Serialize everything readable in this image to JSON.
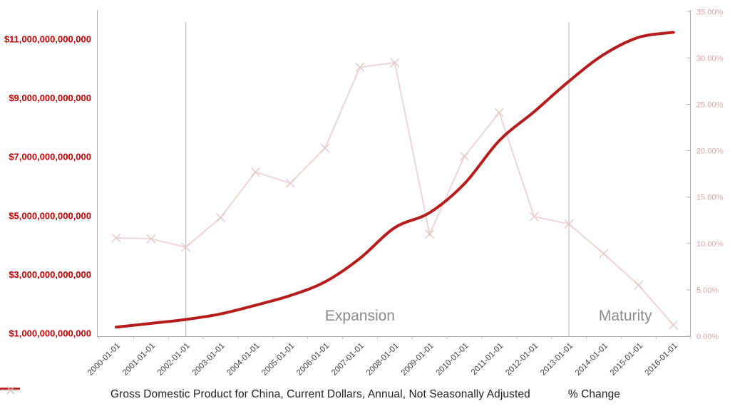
{
  "chart_data": {
    "type": "line",
    "title": "",
    "categories": [
      "2000-01-01",
      "2001-01-01",
      "2002-01-01",
      "2003-01-01",
      "2004-01-01",
      "2005-01-01",
      "2006-01-01",
      "2007-01-01",
      "2008-01-01",
      "2009-01-01",
      "2010-01-01",
      "2011-01-01",
      "2012-01-01",
      "2013-01-01",
      "2014-01-01",
      "2015-01-01",
      "2016-01-01"
    ],
    "series": [
      {
        "name": "Gross Domestic Product for China, Current Dollars, Annual, Not Seasonally Adjusted",
        "axis": "left",
        "unit": "USD trillions",
        "style": "smooth-line",
        "color": "#b71c1c",
        "values": [
          1.211,
          1.339,
          1.471,
          1.66,
          1.955,
          2.286,
          2.752,
          3.55,
          4.594,
          5.102,
          6.087,
          7.552,
          8.532,
          9.57,
          10.476,
          11.062,
          11.233
        ]
      },
      {
        "name": "% Change",
        "axis": "right",
        "unit": "percent",
        "style": "line-x-markers",
        "color": "#eed8d8",
        "marker_color": "#e5c7c7",
        "values": [
          10.6,
          10.5,
          9.6,
          12.8,
          17.7,
          16.5,
          20.3,
          29.0,
          29.5,
          11.0,
          19.4,
          24.1,
          12.9,
          12.1,
          8.9,
          5.5,
          1.2
        ]
      }
    ],
    "left_axis": {
      "label_color": "#c00000",
      "ticks": [
        {
          "value": 1,
          "label": "$1,000,000,000,000"
        },
        {
          "value": 3,
          "label": "$3,000,000,000,000"
        },
        {
          "value": 5,
          "label": "$5,000,000,000,000"
        },
        {
          "value": 7,
          "label": "$7,000,000,000,000"
        },
        {
          "value": 9,
          "label": "$9,000,000,000,000"
        },
        {
          "value": 11,
          "label": "$11,000,000,000,000"
        }
      ]
    },
    "right_axis": {
      "label_color": "#d8a3a3",
      "range_percent": [
        0,
        35
      ],
      "ticks": [
        {
          "value": 0,
          "label": "0.00%"
        },
        {
          "value": 5,
          "label": "5.00%"
        },
        {
          "value": 10,
          "label": "10.00%"
        },
        {
          "value": 15,
          "label": "15.00%"
        },
        {
          "value": 20,
          "label": "20.00%"
        },
        {
          "value": 25,
          "label": "25.00%"
        },
        {
          "value": 30,
          "label": "30.00%"
        },
        {
          "value": 35,
          "label": "35.00%"
        }
      ]
    },
    "phases": [
      {
        "label": "Expansion",
        "divider_index": 2,
        "label_center_index": 7.0
      },
      {
        "label": "Maturity",
        "divider_index": 13,
        "label_center_index": 14.62
      }
    ],
    "phase_label_color": "#8a8a8a",
    "x_label_color": "#3d3d3d",
    "axis_line_color": "#ababab",
    "divider_color": "#b5b5b5",
    "grid": "off",
    "legend_position": "bottom"
  }
}
